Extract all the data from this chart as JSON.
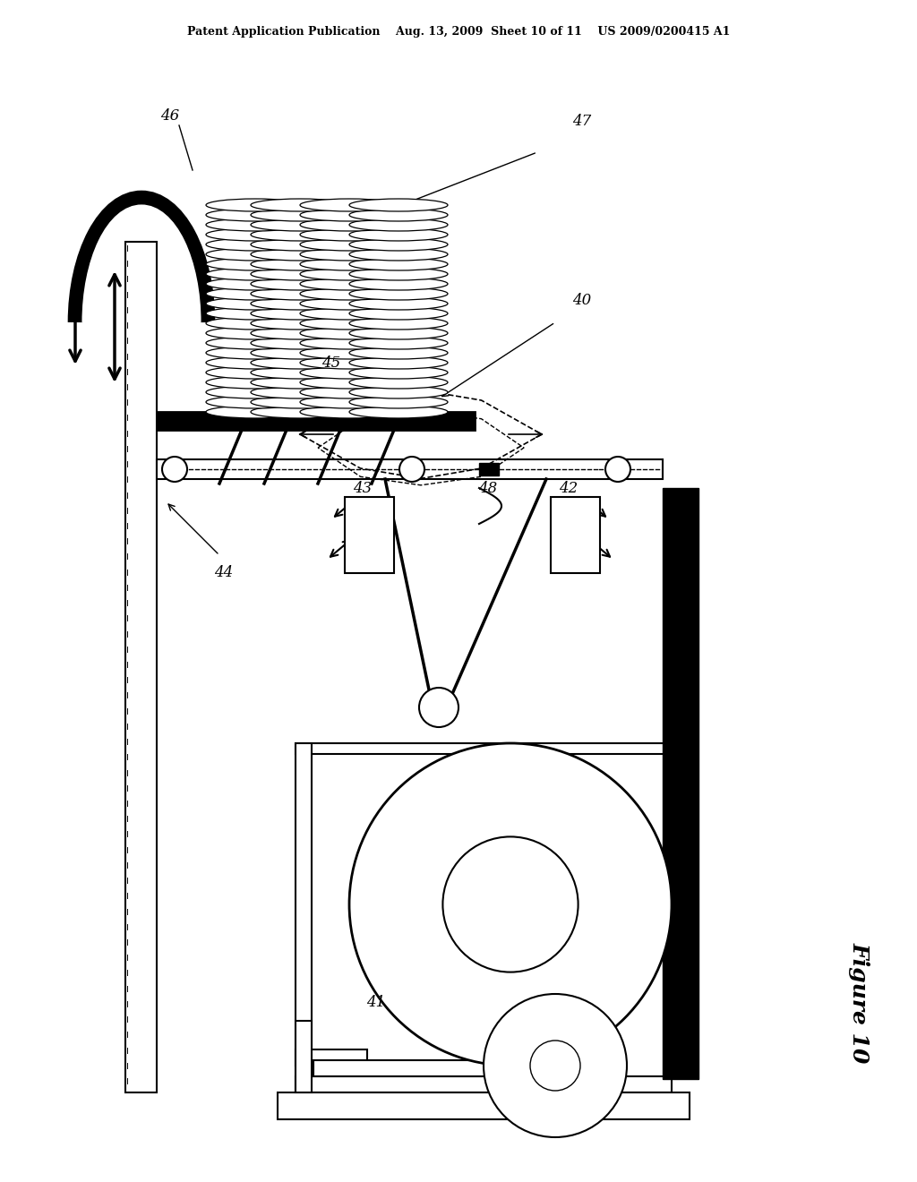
{
  "bg_color": "#ffffff",
  "header": "Patent Application Publication    Aug. 13, 2009  Sheet 10 of 11    US 2009/0200415 A1",
  "figure_label": "Figure 10"
}
